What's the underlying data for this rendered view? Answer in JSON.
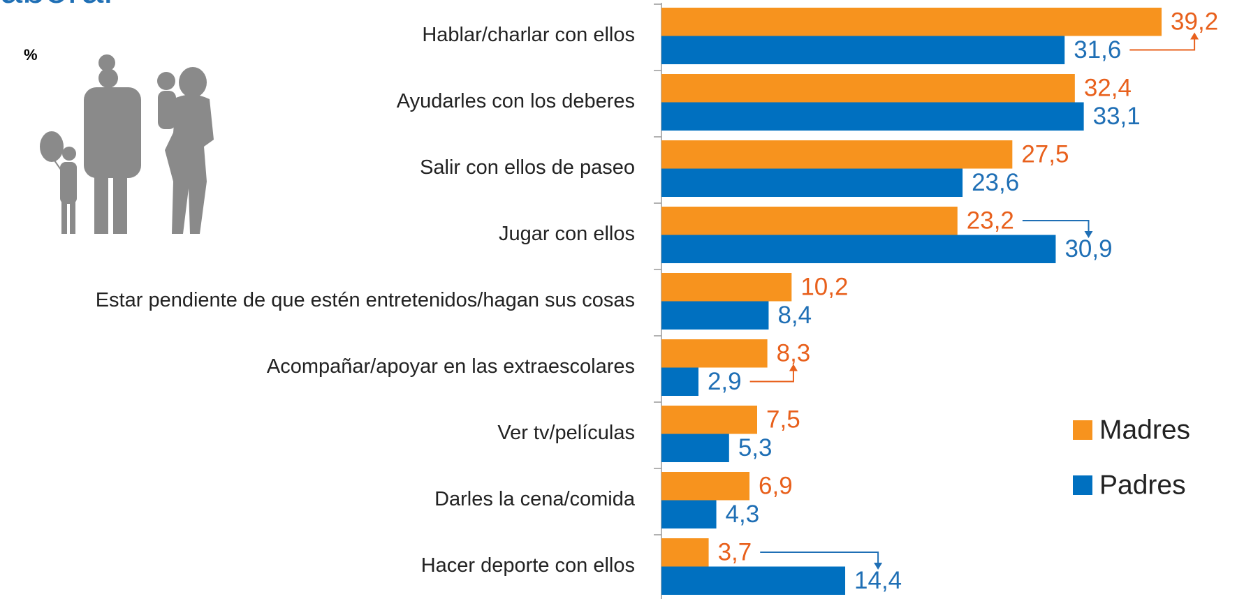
{
  "title": "aboral",
  "unit_label": "%",
  "chart_data": {
    "type": "hbar",
    "categories": [
      "Hablar/charlar con ellos",
      "Ayudarles con los deberes",
      "Salir con ellos de paseo",
      "Jugar con ellos",
      "Estar pendiente de que estén entretenidos/hagan sus cosas",
      "Acompañar/apoyar en las extraescolares",
      "Ver tv/películas",
      "Darles la cena/comida",
      "Hacer deporte con ellos"
    ],
    "series": [
      {
        "name": "Madres",
        "color": "#f7931e",
        "label_color": "#e8601c",
        "values": [
          39.2,
          32.4,
          27.5,
          23.2,
          10.2,
          8.3,
          7.5,
          6.9,
          3.7
        ],
        "value_labels": [
          "39,2",
          "32,4",
          "27,5",
          "23,2",
          "10,2",
          "8,3",
          "7,5",
          "6,9",
          "3,7"
        ]
      },
      {
        "name": "Padres",
        "color": "#0070c0",
        "label_color": "#1f6fb5",
        "values": [
          31.6,
          33.1,
          23.6,
          30.9,
          8.4,
          2.9,
          5.3,
          4.3,
          14.4
        ],
        "value_labels": [
          "31,6",
          "33,1",
          "23,6",
          "30,9",
          "8,4",
          "2,9",
          "5,3",
          "4,3",
          "14,4"
        ]
      }
    ],
    "xlim": [
      0,
      45
    ],
    "legend": "right"
  }
}
